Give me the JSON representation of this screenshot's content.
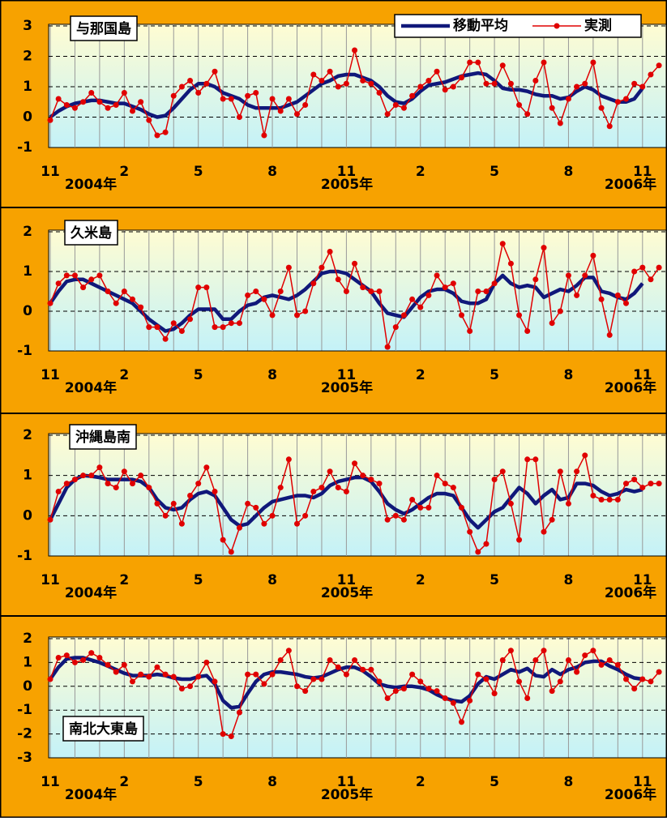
{
  "chart_data": [
    {
      "type": "line",
      "title": "与那国島",
      "categories": [
        "11",
        null,
        null,
        null,
        null,
        null,
        null,
        null,
        null,
        "2",
        null,
        null,
        null,
        null,
        null,
        null,
        null,
        null,
        "5",
        null,
        null,
        null,
        null,
        null,
        null,
        null,
        null,
        "8",
        null,
        null,
        null,
        null,
        null,
        null,
        null,
        null,
        "11",
        null,
        null,
        null,
        null,
        null,
        null,
        null,
        null,
        "2",
        null,
        null,
        null,
        null,
        null,
        null,
        null,
        null,
        "5",
        null,
        null,
        null,
        null,
        null,
        null,
        null,
        null,
        "8",
        null,
        null,
        null,
        null,
        null,
        null,
        null,
        null,
        "11",
        null,
        null
      ],
      "year_labels": [
        "2004年",
        "2005年",
        "2006年"
      ],
      "series": [
        {
          "name": "移動平均",
          "color": "#10187a",
          "values": [
            0.0,
            0.2,
            0.35,
            0.45,
            0.5,
            0.55,
            0.55,
            0.5,
            0.45,
            0.45,
            0.35,
            0.25,
            0.1,
            0.0,
            0.05,
            0.3,
            0.6,
            0.9,
            1.1,
            1.1,
            1.0,
            0.8,
            0.7,
            0.6,
            0.4,
            0.3,
            0.3,
            0.3,
            0.3,
            0.4,
            0.5,
            0.7,
            0.9,
            1.1,
            1.2,
            1.35,
            1.4,
            1.4,
            1.3,
            1.2,
            1.0,
            0.7,
            0.5,
            0.45,
            0.6,
            0.85,
            1.05,
            1.1,
            1.15,
            1.25,
            1.35,
            1.4,
            1.45,
            1.4,
            1.2,
            0.95,
            0.9,
            0.9,
            0.85,
            0.75,
            0.7,
            0.7,
            0.6,
            0.65,
            0.85,
            1.0,
            0.9,
            0.7,
            0.6,
            0.5,
            0.5,
            0.6,
            0.95,
            null,
            null
          ]
        },
        {
          "name": "実測",
          "color": "#e00000",
          "values": [
            -0.1,
            0.6,
            0.4,
            0.3,
            0.5,
            0.8,
            0.5,
            0.3,
            0.4,
            0.8,
            0.2,
            0.5,
            -0.1,
            -0.6,
            -0.5,
            0.7,
            1.0,
            1.2,
            0.8,
            1.1,
            1.5,
            0.6,
            0.6,
            0.0,
            0.7,
            0.8,
            -0.6,
            0.6,
            0.2,
            0.6,
            0.1,
            0.4,
            1.4,
            1.2,
            1.5,
            1.0,
            1.1,
            2.2,
            1.2,
            1.1,
            0.8,
            0.1,
            0.4,
            0.3,
            0.7,
            1.0,
            1.2,
            1.5,
            0.9,
            1.0,
            1.3,
            1.8,
            1.8,
            1.1,
            1.1,
            1.7,
            1.1,
            0.4,
            0.1,
            1.2,
            1.8,
            0.3,
            -0.2,
            0.6,
            1.0,
            1.1,
            1.8,
            0.3,
            -0.3,
            0.5,
            0.6,
            1.1,
            1.0,
            1.4,
            1.7
          ]
        }
      ],
      "ylim": [
        -1,
        3
      ],
      "yticks": [
        -1,
        0,
        1,
        2,
        3
      ],
      "grid": true
    },
    {
      "type": "line",
      "title": "久米島",
      "categories": [
        "11",
        null,
        null,
        null,
        null,
        null,
        null,
        null,
        null,
        "2",
        null,
        null,
        null,
        null,
        null,
        null,
        null,
        null,
        "5",
        null,
        null,
        null,
        null,
        null,
        null,
        null,
        null,
        "8",
        null,
        null,
        null,
        null,
        null,
        null,
        null,
        null,
        "11",
        null,
        null,
        null,
        null,
        null,
        null,
        null,
        null,
        "2",
        null,
        null,
        null,
        null,
        null,
        null,
        null,
        null,
        "5",
        null,
        null,
        null,
        null,
        null,
        null,
        null,
        null,
        "8",
        null,
        null,
        null,
        null,
        null,
        null,
        null,
        null,
        "11",
        null,
        null
      ],
      "year_labels": [
        "2004年",
        "2005年",
        "2006年"
      ],
      "series": [
        {
          "color": "#10187a",
          "values": [
            0.2,
            0.5,
            0.75,
            0.8,
            0.8,
            0.7,
            0.6,
            0.5,
            0.4,
            0.3,
            0.2,
            0.0,
            -0.2,
            -0.35,
            -0.5,
            -0.45,
            -0.3,
            -0.1,
            0.05,
            0.05,
            0.05,
            -0.2,
            -0.2,
            0.0,
            0.15,
            0.2,
            0.35,
            0.4,
            0.35,
            0.3,
            0.4,
            0.55,
            0.75,
            0.95,
            1.0,
            1.0,
            0.95,
            0.8,
            0.65,
            0.5,
            0.2,
            -0.05,
            -0.1,
            -0.15,
            0.1,
            0.35,
            0.5,
            0.55,
            0.55,
            0.45,
            0.25,
            0.2,
            0.2,
            0.3,
            0.7,
            0.9,
            0.7,
            0.6,
            0.65,
            0.6,
            0.35,
            0.45,
            0.55,
            0.5,
            0.65,
            0.85,
            0.85,
            0.5,
            0.45,
            0.35,
            0.3,
            0.45,
            0.7,
            null,
            null
          ]
        },
        {
          "color": "#e00000",
          "values": [
            0.2,
            0.7,
            0.9,
            0.9,
            0.6,
            0.8,
            0.9,
            0.5,
            0.2,
            0.5,
            0.3,
            0.1,
            -0.4,
            -0.4,
            -0.7,
            -0.3,
            -0.5,
            -0.2,
            0.6,
            0.6,
            -0.4,
            -0.4,
            -0.3,
            -0.3,
            0.4,
            0.5,
            0.3,
            -0.1,
            0.5,
            1.1,
            -0.1,
            0.0,
            0.7,
            1.1,
            1.5,
            0.8,
            0.5,
            1.2,
            0.6,
            0.5,
            0.5,
            -0.9,
            -0.4,
            -0.1,
            0.3,
            0.1,
            0.4,
            0.9,
            0.6,
            0.7,
            -0.1,
            -0.5,
            0.5,
            0.5,
            0.7,
            1.7,
            1.2,
            -0.1,
            -0.5,
            0.8,
            1.6,
            -0.3,
            0.0,
            0.9,
            0.4,
            0.9,
            1.4,
            0.3,
            -0.6,
            0.4,
            0.2,
            1.0,
            1.1,
            0.8,
            1.1
          ]
        }
      ],
      "ylim": [
        -1,
        2
      ],
      "yticks": [
        -1,
        0,
        1,
        2
      ],
      "grid": true
    },
    {
      "type": "line",
      "title": "沖縄島南",
      "categories": [
        "11",
        null,
        null,
        null,
        null,
        null,
        null,
        null,
        null,
        "2",
        null,
        null,
        null,
        null,
        null,
        null,
        null,
        null,
        "5",
        null,
        null,
        null,
        null,
        null,
        null,
        null,
        null,
        "8",
        null,
        null,
        null,
        null,
        null,
        null,
        null,
        null,
        "11",
        null,
        null,
        null,
        null,
        null,
        null,
        null,
        null,
        "2",
        null,
        null,
        null,
        null,
        null,
        null,
        null,
        null,
        "5",
        null,
        null,
        null,
        null,
        null,
        null,
        null,
        null,
        "8",
        null,
        null,
        null,
        null,
        null,
        null,
        null,
        null,
        "11",
        null,
        null
      ],
      "year_labels": [
        "2004年",
        "2005年",
        "2006年"
      ],
      "series": [
        {
          "color": "#10187a",
          "values": [
            -0.1,
            0.3,
            0.7,
            0.9,
            1.0,
            0.98,
            0.95,
            0.9,
            0.9,
            0.9,
            0.9,
            0.85,
            0.7,
            0.4,
            0.2,
            0.15,
            0.2,
            0.4,
            0.55,
            0.6,
            0.5,
            0.2,
            -0.1,
            -0.25,
            -0.2,
            0.0,
            0.2,
            0.35,
            0.4,
            0.45,
            0.5,
            0.5,
            0.45,
            0.55,
            0.75,
            0.85,
            0.9,
            0.95,
            0.95,
            0.85,
            0.6,
            0.3,
            0.15,
            0.05,
            0.15,
            0.3,
            0.45,
            0.55,
            0.55,
            0.5,
            0.2,
            -0.1,
            -0.3,
            -0.1,
            0.1,
            0.2,
            0.45,
            0.7,
            0.55,
            0.3,
            0.5,
            0.65,
            0.4,
            0.45,
            0.8,
            0.8,
            0.75,
            0.6,
            0.5,
            0.55,
            0.65,
            0.6,
            0.65,
            null,
            null
          ]
        },
        {
          "color": "#e00000",
          "values": [
            -0.1,
            0.6,
            0.8,
            0.9,
            1.0,
            1.0,
            1.2,
            0.8,
            0.7,
            1.1,
            0.8,
            1.0,
            0.7,
            0.3,
            0.0,
            0.3,
            -0.2,
            0.5,
            0.8,
            1.2,
            0.6,
            -0.6,
            -0.9,
            -0.3,
            0.3,
            0.2,
            -0.2,
            0.0,
            0.7,
            1.4,
            -0.2,
            0.0,
            0.6,
            0.7,
            1.1,
            0.7,
            0.6,
            1.3,
            1.0,
            0.9,
            0.8,
            -0.1,
            0.0,
            -0.1,
            0.4,
            0.2,
            0.2,
            1.0,
            0.8,
            0.7,
            0.2,
            -0.4,
            -0.9,
            -0.7,
            0.9,
            1.1,
            0.3,
            -0.6,
            1.4,
            1.4,
            -0.4,
            -0.1,
            1.1,
            0.3,
            1.1,
            1.5,
            0.5,
            0.4,
            0.4,
            0.4,
            0.8,
            0.9,
            0.7,
            0.8,
            0.8
          ]
        }
      ],
      "ylim": [
        -1,
        2
      ],
      "yticks": [
        -1,
        0,
        1,
        2
      ],
      "grid": true
    },
    {
      "type": "line",
      "title": "南北大東島",
      "categories": [
        "11",
        null,
        null,
        null,
        null,
        null,
        null,
        null,
        null,
        "2",
        null,
        null,
        null,
        null,
        null,
        null,
        null,
        null,
        "5",
        null,
        null,
        null,
        null,
        null,
        null,
        null,
        null,
        "8",
        null,
        null,
        null,
        null,
        null,
        null,
        null,
        null,
        "11",
        null,
        null,
        null,
        null,
        null,
        null,
        null,
        null,
        "2",
        null,
        null,
        null,
        null,
        null,
        null,
        null,
        null,
        "5",
        null,
        null,
        null,
        null,
        null,
        null,
        null,
        null,
        "8",
        null,
        null,
        null,
        null,
        null,
        null,
        null,
        null,
        "11",
        null,
        null
      ],
      "year_labels": [
        "2004年",
        "2005年",
        "2006年"
      ],
      "series": [
        {
          "color": "#10187a",
          "values": [
            0.3,
            0.8,
            1.15,
            1.2,
            1.2,
            1.1,
            1.0,
            0.85,
            0.7,
            0.55,
            0.45,
            0.45,
            0.45,
            0.5,
            0.45,
            0.35,
            0.3,
            0.3,
            0.4,
            0.45,
            0.1,
            -0.6,
            -0.9,
            -0.85,
            -0.3,
            0.2,
            0.5,
            0.6,
            0.6,
            0.55,
            0.5,
            0.4,
            0.35,
            0.4,
            0.55,
            0.7,
            0.8,
            0.8,
            0.65,
            0.4,
            0.1,
            0.0,
            -0.05,
            0.0,
            0.0,
            -0.05,
            -0.15,
            -0.35,
            -0.5,
            -0.6,
            -0.65,
            -0.4,
            0.1,
            0.4,
            0.3,
            0.5,
            0.7,
            0.6,
            0.75,
            0.45,
            0.4,
            0.7,
            0.5,
            0.7,
            0.8,
            1.0,
            1.05,
            1.05,
            0.85,
            0.7,
            0.5,
            0.35,
            0.3,
            null,
            null
          ]
        },
        {
          "color": "#e00000",
          "values": [
            0.3,
            1.2,
            1.3,
            1.0,
            1.1,
            1.4,
            1.2,
            0.9,
            0.6,
            0.9,
            0.2,
            0.5,
            0.4,
            0.8,
            0.5,
            0.4,
            -0.1,
            0.0,
            0.4,
            1.0,
            0.2,
            -2.0,
            -2.1,
            -1.1,
            0.5,
            0.5,
            0.1,
            0.5,
            1.1,
            1.5,
            0.0,
            -0.2,
            0.3,
            0.3,
            1.1,
            0.8,
            0.5,
            1.1,
            0.7,
            0.7,
            0.2,
            -0.5,
            -0.2,
            -0.1,
            0.5,
            0.2,
            -0.1,
            -0.2,
            -0.5,
            -0.7,
            -1.5,
            -0.6,
            0.5,
            0.3,
            -0.3,
            1.1,
            1.5,
            0.2,
            -0.5,
            1.1,
            1.5,
            -0.2,
            0.2,
            1.1,
            0.6,
            1.3,
            1.5,
            0.9,
            1.1,
            0.9,
            0.3,
            -0.1,
            0.3,
            0.2,
            0.6
          ]
        }
      ],
      "ylim": [
        -3,
        2
      ],
      "yticks": [
        -3,
        -2,
        -1,
        0,
        1,
        2
      ],
      "grid": true
    }
  ]
}
